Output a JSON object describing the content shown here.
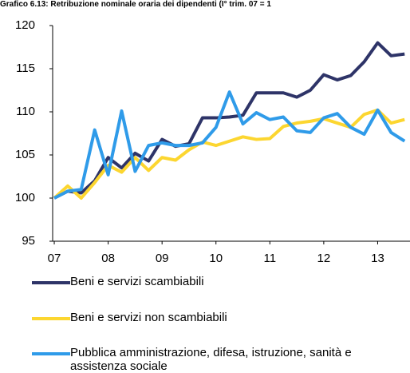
{
  "chart_data": {
    "type": "line",
    "title": "Grafico 6.13: Retribuzione nominale oraria dei dipendenti (I° trim. 07 = 1",
    "x": [
      2007,
      2007.25,
      2007.5,
      2007.75,
      2008,
      2008.25,
      2008.5,
      2008.75,
      2009,
      2009.25,
      2009.5,
      2009.75,
      2010,
      2010.25,
      2010.5,
      2010.75,
      2011,
      2011.25,
      2011.5,
      2011.75,
      2012,
      2012.25,
      2012.5,
      2012.75,
      2013,
      2013.25,
      2013.5
    ],
    "series": [
      {
        "name": "Beni e servizi scambiabili",
        "color": "#2e3468",
        "values": [
          100,
          100.8,
          100.6,
          102,
          104.7,
          103.5,
          105.2,
          104.3,
          106.8,
          106,
          106.3,
          109.3,
          109.3,
          109.4,
          109.6,
          112.2,
          112.2,
          112.2,
          111.7,
          112.5,
          114.3,
          113.7,
          114.2,
          115.8,
          118,
          116.5,
          116.7
        ]
      },
      {
        "name": "Beni e servizi non scambiabili",
        "color": "#fcd630",
        "values": [
          100,
          101.4,
          100,
          101.8,
          103.8,
          103,
          104.7,
          103.2,
          104.7,
          104.4,
          105.6,
          106.5,
          106.1,
          106.6,
          107.1,
          106.8,
          106.9,
          108.3,
          108.7,
          108.9,
          109.2,
          108.7,
          108.2,
          109.7,
          110.2,
          108.7,
          109.1
        ]
      },
      {
        "name": "Pubblica amministrazione, difesa, istruzione, sanità e assistenza sociale",
        "color": "#2f9be9",
        "values": [
          100,
          100.8,
          101,
          107.9,
          102.7,
          110.1,
          103.1,
          106.1,
          106.4,
          106.1,
          106.1,
          106.4,
          108.2,
          112.3,
          108.6,
          109.9,
          109.1,
          109.4,
          107.8,
          107.6,
          109.3,
          109.8,
          108.2,
          107.4,
          110.2,
          107.6,
          106.6
        ]
      }
    ],
    "xlim": [
      2006.97,
      2013.6
    ],
    "xticks": [
      {
        "value": 2007,
        "label": "07"
      },
      {
        "value": 2008,
        "label": "08"
      },
      {
        "value": 2009,
        "label": "09"
      },
      {
        "value": 2010,
        "label": "10"
      },
      {
        "value": 2011,
        "label": "11"
      },
      {
        "value": 2012,
        "label": "12"
      },
      {
        "value": 2013,
        "label": "13"
      }
    ],
    "ylim": [
      95,
      120
    ],
    "yticks": [
      95,
      100,
      105,
      110,
      115,
      120
    ]
  }
}
